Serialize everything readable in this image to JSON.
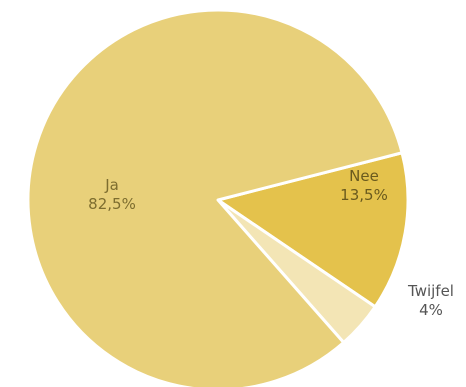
{
  "chart_data": {
    "type": "pie",
    "categories": [
      "Ja",
      "Nee",
      "Twijfel"
    ],
    "values": [
      82.5,
      13.5,
      4
    ],
    "value_labels": [
      "82,5%",
      "13,5%",
      "4%"
    ],
    "colors": [
      "#e8d07a",
      "#e4c24c",
      "#f3e5b5"
    ],
    "label_colors": [
      "#7d6d2f",
      "#6a5a1e",
      "#555555"
    ],
    "legend": "none"
  }
}
